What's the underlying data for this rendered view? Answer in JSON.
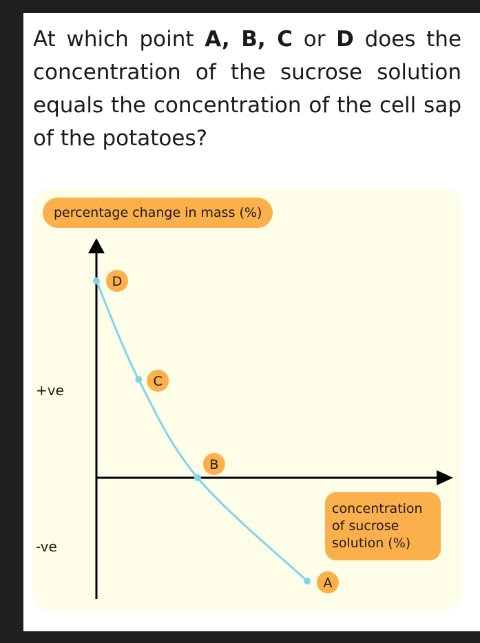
{
  "question": {
    "part1": "At which point ",
    "optA": "A, ",
    "optB": "B, ",
    "optC": "C",
    "part2": " or ",
    "optD": "D",
    "part3": " does the concentration of the sucrose solution equals the concentration of the cell sap of the potatoes?"
  },
  "chart_data": {
    "type": "line",
    "ylabel": "percentage change in mass (%)",
    "xlabel": "concentration of sucrose solution (%)",
    "ytick_labels": [
      "+ve",
      "-ve"
    ],
    "series": [
      {
        "points": [
          {
            "label": "D",
            "x": 0.0,
            "y": 1.0
          },
          {
            "label": "C",
            "x": 0.2,
            "y": 0.5
          },
          {
            "label": "B",
            "x": 0.48,
            "y": 0.0
          },
          {
            "label": "A",
            "x": 1.0,
            "y": -0.6
          }
        ]
      }
    ],
    "colors": {
      "curve": "#7fd6ec",
      "badge": "#fbb04c",
      "axis": "#000000",
      "panel": "#fdfde8"
    }
  }
}
